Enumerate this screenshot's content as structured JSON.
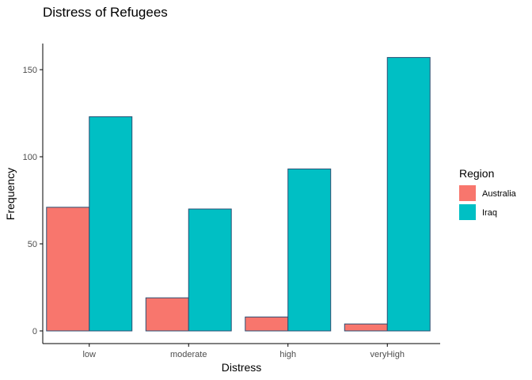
{
  "chart_data": {
    "type": "bar",
    "title": "Distress of Refugees",
    "xlabel": "Distress",
    "ylabel": "Frequency",
    "categories": [
      "low",
      "moderate",
      "high",
      "veryHigh"
    ],
    "series": [
      {
        "name": "Australia",
        "values": [
          71,
          19,
          8,
          4
        ],
        "color": "#F8766D"
      },
      {
        "name": "Iraq",
        "values": [
          123,
          70,
          93,
          157
        ],
        "color": "#00BFC4"
      }
    ],
    "ylim": [
      0,
      163
    ],
    "yticks": [
      0,
      50,
      100,
      150
    ],
    "legend": {
      "title": "Region",
      "placement": "right"
    },
    "grid": false
  }
}
